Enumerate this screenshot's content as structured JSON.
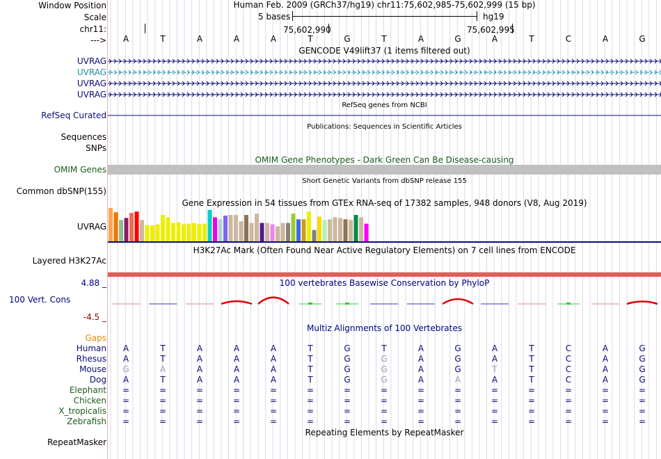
{
  "ruler": {
    "window_position_label": "Window Position",
    "scale_label": "Scale",
    "chrom_label": "chr11:",
    "arrow_label": "--->",
    "assembly_text": "Human Feb. 2009 (GRCh37/hg19)   chr11:75,602,985-75,602,999 (15 bp)",
    "scale_text": "5 bases",
    "scale_db": "hg19",
    "pos1": "75,602,990",
    "pos2": "75,602,995",
    "bases": [
      "A",
      "T",
      "A",
      "A",
      "A",
      "T",
      "G",
      "T",
      "A",
      "G",
      "A",
      "T",
      "C",
      "A",
      "G"
    ]
  },
  "gencode": {
    "title": "GENCODE V49lift37 (1 items filtered out)",
    "tracks": [
      {
        "label": "UVRAG",
        "color": "#0c0c78"
      },
      {
        "label": "UVRAG",
        "color": "#1e8fa8"
      },
      {
        "label": "UVRAG",
        "color": "#0c0c78"
      },
      {
        "label": "UVRAG",
        "color": "#0c0c78"
      }
    ]
  },
  "refseq": {
    "title": "RefSeq genes from NCBI",
    "label": "RefSeq Curated",
    "color": "#0c0c78"
  },
  "publications": {
    "title": "Publications: Sequences in Scientific Articles",
    "label1": "Sequences",
    "label2": "SNPs"
  },
  "omim": {
    "title": "OMIM Gene Phenotypes - Dark Green Can Be Disease-causing",
    "label": "OMIM Genes",
    "color": "#1a5c1a",
    "bar_color": "#c0c0c0"
  },
  "dbsnp": {
    "title": "Short Genetic Variants from dbSNP release 155",
    "label": "Common dbSNP(155)"
  },
  "gtex": {
    "title": "Gene Expression in 54 tissues from GTEx RNA-seq of 17382 samples, 948 donors (V8, Aug 2019)",
    "label": "UVRAG",
    "bars": [
      {
        "c": "#ffa54f",
        "v": 1.0
      },
      {
        "c": "#ee7600",
        "v": 0.87
      },
      {
        "c": "#8fbc8f",
        "v": 0.64
      },
      {
        "c": "#8b1c62",
        "v": 0.7
      },
      {
        "c": "#ee6a50",
        "v": 0.85
      },
      {
        "c": "#ff0000",
        "v": 0.89
      },
      {
        "c": "#cdb79e",
        "v": 0.64
      },
      {
        "c": "#eeee00",
        "v": 0.49
      },
      {
        "c": "#eeee00",
        "v": 0.48
      },
      {
        "c": "#eeee00",
        "v": 0.51
      },
      {
        "c": "#eeee00",
        "v": 0.79
      },
      {
        "c": "#eeee00",
        "v": 0.72
      },
      {
        "c": "#eeee00",
        "v": 0.55
      },
      {
        "c": "#eeee00",
        "v": 0.57
      },
      {
        "c": "#eeee00",
        "v": 0.51
      },
      {
        "c": "#eeee00",
        "v": 0.53
      },
      {
        "c": "#eeee00",
        "v": 0.55
      },
      {
        "c": "#eeee00",
        "v": 0.51
      },
      {
        "c": "#eeee00",
        "v": 0.53
      },
      {
        "c": "#00cdcd",
        "v": 0.94
      },
      {
        "c": "#ee00ee",
        "v": 0.72
      },
      {
        "c": "#b4cde0",
        "v": 0.66
      },
      {
        "c": "#7a67ee",
        "v": 0.77
      },
      {
        "c": "#cdb79e",
        "v": 0.79
      },
      {
        "c": "#cdb79e",
        "v": 0.79
      },
      {
        "c": "#cdb79e",
        "v": 0.6
      },
      {
        "c": "#8b7355",
        "v": 0.79
      },
      {
        "c": "#cdb79e",
        "v": 0.55
      },
      {
        "c": "#cdb79e",
        "v": 0.83
      },
      {
        "c": "#551a8b",
        "v": 0.55
      },
      {
        "c": "#cdb79e",
        "v": 0.55
      },
      {
        "c": "#ee82ee",
        "v": 0.51
      },
      {
        "c": "#cdb79e",
        "v": 0.45
      },
      {
        "c": "#cdb79e",
        "v": 0.55
      },
      {
        "c": "#8b8378",
        "v": 0.55
      },
      {
        "c": "#9acd32",
        "v": 0.83
      },
      {
        "c": "#4169e1",
        "v": 0.66
      },
      {
        "c": "#cd9b1d",
        "v": 0.66
      },
      {
        "c": "#eeee00",
        "v": 0.89
      },
      {
        "c": "#7f7f7f",
        "v": 0.34
      },
      {
        "c": "#ffd700",
        "v": 0.74
      },
      {
        "c": "#b4eeb4",
        "v": 0.64
      },
      {
        "c": "#cdb79e",
        "v": 0.66
      },
      {
        "c": "#cdb79e",
        "v": 0.72
      },
      {
        "c": "#cdb79e",
        "v": 0.7
      },
      {
        "c": "#8b7355",
        "v": 0.66
      },
      {
        "c": "#cdb79e",
        "v": 0.64
      },
      {
        "c": "#008b45",
        "v": 0.79
      },
      {
        "c": "#cdb79e",
        "v": 0.72
      },
      {
        "c": "#ff00ff",
        "v": 0.53
      }
    ]
  },
  "h3k27ac": {
    "title": "H3K27Ac Mark (Often Found Near Active Regulatory Elements) on 7 cell lines from ENCODE",
    "label": "Layered H3K27Ac",
    "color": "#e85a5a"
  },
  "conservation": {
    "title": "100 vertebrates Basewise Conservation by PhyloP",
    "label": "100 Vert. Cons",
    "max_label": "4.88 _",
    "min_label": "-4.5 _",
    "color": "#000080",
    "min_color": "#8b0000",
    "scores": [
      -0.5,
      -0.8,
      -0.2,
      1.2,
      2.9,
      0.1,
      0.8,
      -0.6,
      -0.9,
      2.2,
      -0.7,
      -0.4,
      0.6,
      -0.3,
      1.1
    ]
  },
  "multiz": {
    "title": "Multiz Alignments of 100 Vertebrates",
    "gaps_label": "Gaps",
    "gaps_color": "#e68a00",
    "species": [
      {
        "name": "Human",
        "color": "#0c0c78",
        "seq": [
          "A",
          "T",
          "A",
          "A",
          "A",
          "T",
          "G",
          "T",
          "A",
          "G",
          "A",
          "T",
          "C",
          "A",
          "G"
        ]
      },
      {
        "name": "Rhesus",
        "color": "#0c0c78",
        "seq": [
          "A",
          "T",
          "A",
          "A",
          "A",
          "T",
          "G",
          "G",
          "A",
          "G",
          "A",
          "T",
          "C",
          "A",
          "G"
        ]
      },
      {
        "name": "Mouse",
        "color": "#0c0c78",
        "seq": [
          "G",
          "A",
          "A",
          "A",
          "A",
          "T",
          "G",
          "G",
          "A",
          "G",
          "T",
          "T",
          "C",
          "A",
          "G"
        ]
      },
      {
        "name": "Dog",
        "color": "#0c0c78",
        "seq": [
          "A",
          "T",
          "A",
          "A",
          "A",
          "T",
          "G",
          "G",
          "A",
          "A",
          "A",
          "T",
          "C",
          "A",
          "G"
        ]
      },
      {
        "name": "Elephant",
        "color": "#1a5c1a",
        "seq": [
          "=",
          "=",
          "=",
          "=",
          "=",
          "=",
          "=",
          "=",
          "=",
          "=",
          "=",
          "=",
          "=",
          "=",
          "="
        ]
      },
      {
        "name": "Chicken",
        "color": "#1a5c1a",
        "seq": [
          "=",
          "=",
          "=",
          "=",
          "=",
          "=",
          "=",
          "=",
          "=",
          "=",
          "=",
          "=",
          "=",
          "=",
          "="
        ]
      },
      {
        "name": "X_tropicalis",
        "color": "#1a5c1a",
        "seq": [
          "=",
          "=",
          "=",
          "=",
          "=",
          "=",
          "=",
          "=",
          "=",
          "=",
          "=",
          "=",
          "=",
          "=",
          "="
        ]
      },
      {
        "name": "Zebrafish",
        "color": "#1a5c1a",
        "seq": [
          "=",
          "=",
          "=",
          "=",
          "=",
          "=",
          "=",
          "=",
          "=",
          "=",
          "=",
          "=",
          "=",
          "=",
          "="
        ]
      }
    ]
  },
  "repeatmasker": {
    "title": "Repeating Elements by RepeatMasker",
    "label": "RepeatMasker"
  }
}
